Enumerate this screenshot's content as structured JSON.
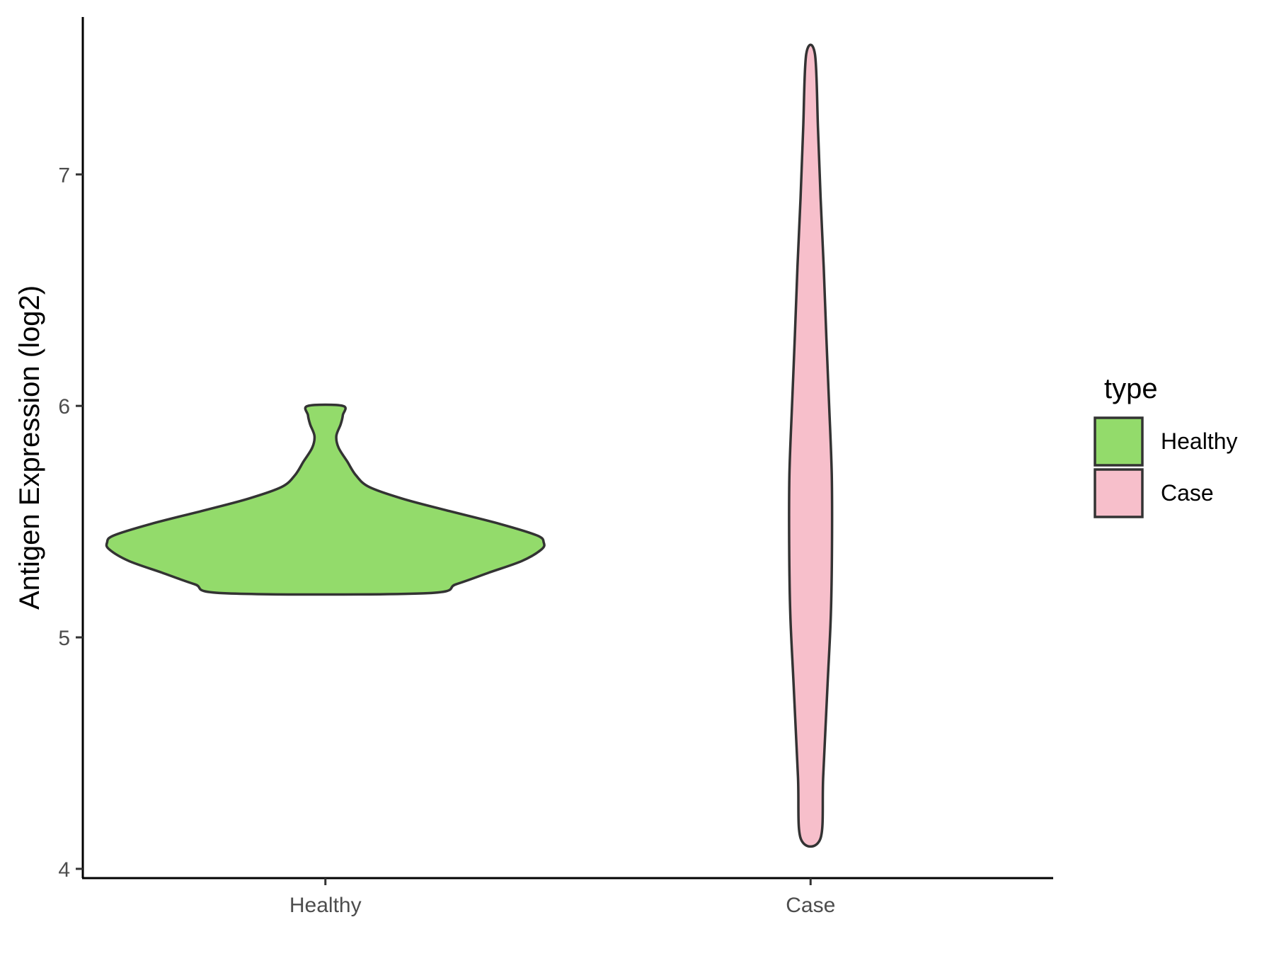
{
  "chart_data": {
    "type": "violin",
    "title": "",
    "xlabel": "",
    "ylabel": "Antigen Expression (log2)",
    "categories": [
      "Healthy",
      "Case"
    ],
    "ylim": [
      3.96,
      7.68
    ],
    "yticks": [
      4,
      5,
      6,
      7
    ],
    "grid": false,
    "legend": {
      "title": "type",
      "position": "right",
      "entries": [
        {
          "label": "Healthy",
          "color": "#93DB6B"
        },
        {
          "label": "Case",
          "color": "#F7BFCB"
        }
      ]
    },
    "series": [
      {
        "name": "Healthy",
        "color": "#93DB6B",
        "min": 5.19,
        "max": 6.0,
        "profile": [
          [
            5.19,
            0.45
          ],
          [
            5.23,
            0.6
          ],
          [
            5.28,
            0.75
          ],
          [
            5.33,
            0.9
          ],
          [
            5.38,
            0.99
          ],
          [
            5.41,
            1.0
          ],
          [
            5.44,
            0.97
          ],
          [
            5.49,
            0.8
          ],
          [
            5.55,
            0.55
          ],
          [
            5.6,
            0.35
          ],
          [
            5.65,
            0.2
          ],
          [
            5.7,
            0.14
          ],
          [
            5.76,
            0.1
          ],
          [
            5.82,
            0.06
          ],
          [
            5.87,
            0.05
          ],
          [
            5.92,
            0.07
          ],
          [
            5.96,
            0.08
          ],
          [
            6.0,
            0.08
          ]
        ]
      },
      {
        "name": "Case",
        "color": "#F7BFCB",
        "min": 4.13,
        "max": 7.52,
        "profile": [
          [
            4.13,
            0.045
          ],
          [
            4.4,
            0.058
          ],
          [
            4.8,
            0.078
          ],
          [
            5.1,
            0.093
          ],
          [
            5.4,
            0.098
          ],
          [
            5.7,
            0.097
          ],
          [
            6.0,
            0.085
          ],
          [
            6.3,
            0.072
          ],
          [
            6.6,
            0.06
          ],
          [
            6.9,
            0.046
          ],
          [
            7.2,
            0.034
          ],
          [
            7.52,
            0.02
          ]
        ]
      }
    ]
  }
}
